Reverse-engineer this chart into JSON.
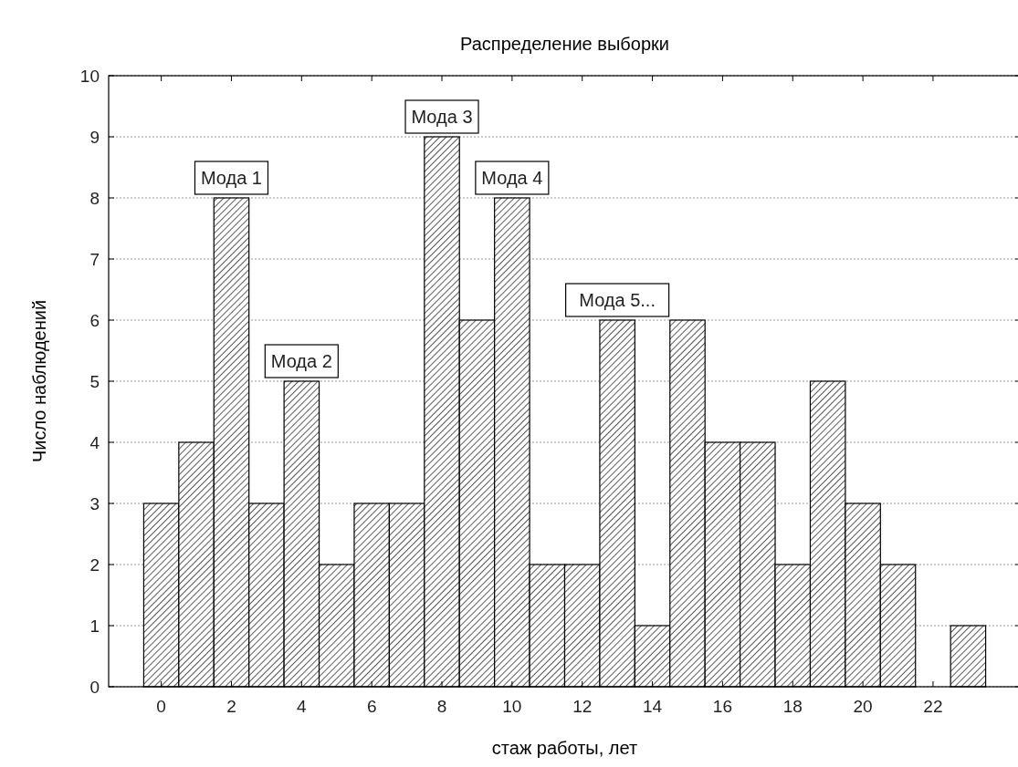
{
  "chart_data": {
    "type": "histogram",
    "title": "Распределение выборки",
    "xlabel": "стаж работы, лет",
    "ylabel": "Число наблюдений",
    "bins": [
      -0.5,
      0.5,
      1.5,
      2.5,
      3.5,
      4.5,
      5.5,
      6.5,
      7.5,
      8.5,
      9.5,
      10.5,
      11.5,
      12.5,
      13.5,
      14.5,
      15.5,
      16.5,
      17.5,
      18.5,
      19.5,
      20.5,
      21.5,
      22.5,
      23.5
    ],
    "values": [
      3,
      4,
      8,
      3,
      5,
      2,
      3,
      3,
      9,
      6,
      8,
      2,
      2,
      6,
      1,
      6,
      4,
      4,
      2,
      5,
      3,
      2,
      0,
      1
    ],
    "color": "#000000",
    "xlim": [
      -1.5,
      24.5
    ],
    "xticks": [
      0,
      2,
      4,
      6,
      8,
      10,
      12,
      14,
      16,
      18,
      20,
      22
    ],
    "ylim": [
      0,
      10
    ],
    "yticks": [
      0,
      1,
      2,
      3,
      4,
      5,
      6,
      7,
      8,
      9,
      10
    ],
    "grid": "y",
    "annotations": [
      {
        "text": "Мода 1",
        "x": 2,
        "y": 8
      },
      {
        "text": "Мода 2",
        "x": 4,
        "y": 5
      },
      {
        "text": "Мода 3",
        "x": 8,
        "y": 9
      },
      {
        "text": "Мода 4",
        "x": 10,
        "y": 8
      },
      {
        "text": "Мода 5...",
        "x": 13,
        "y": 6
      }
    ]
  }
}
